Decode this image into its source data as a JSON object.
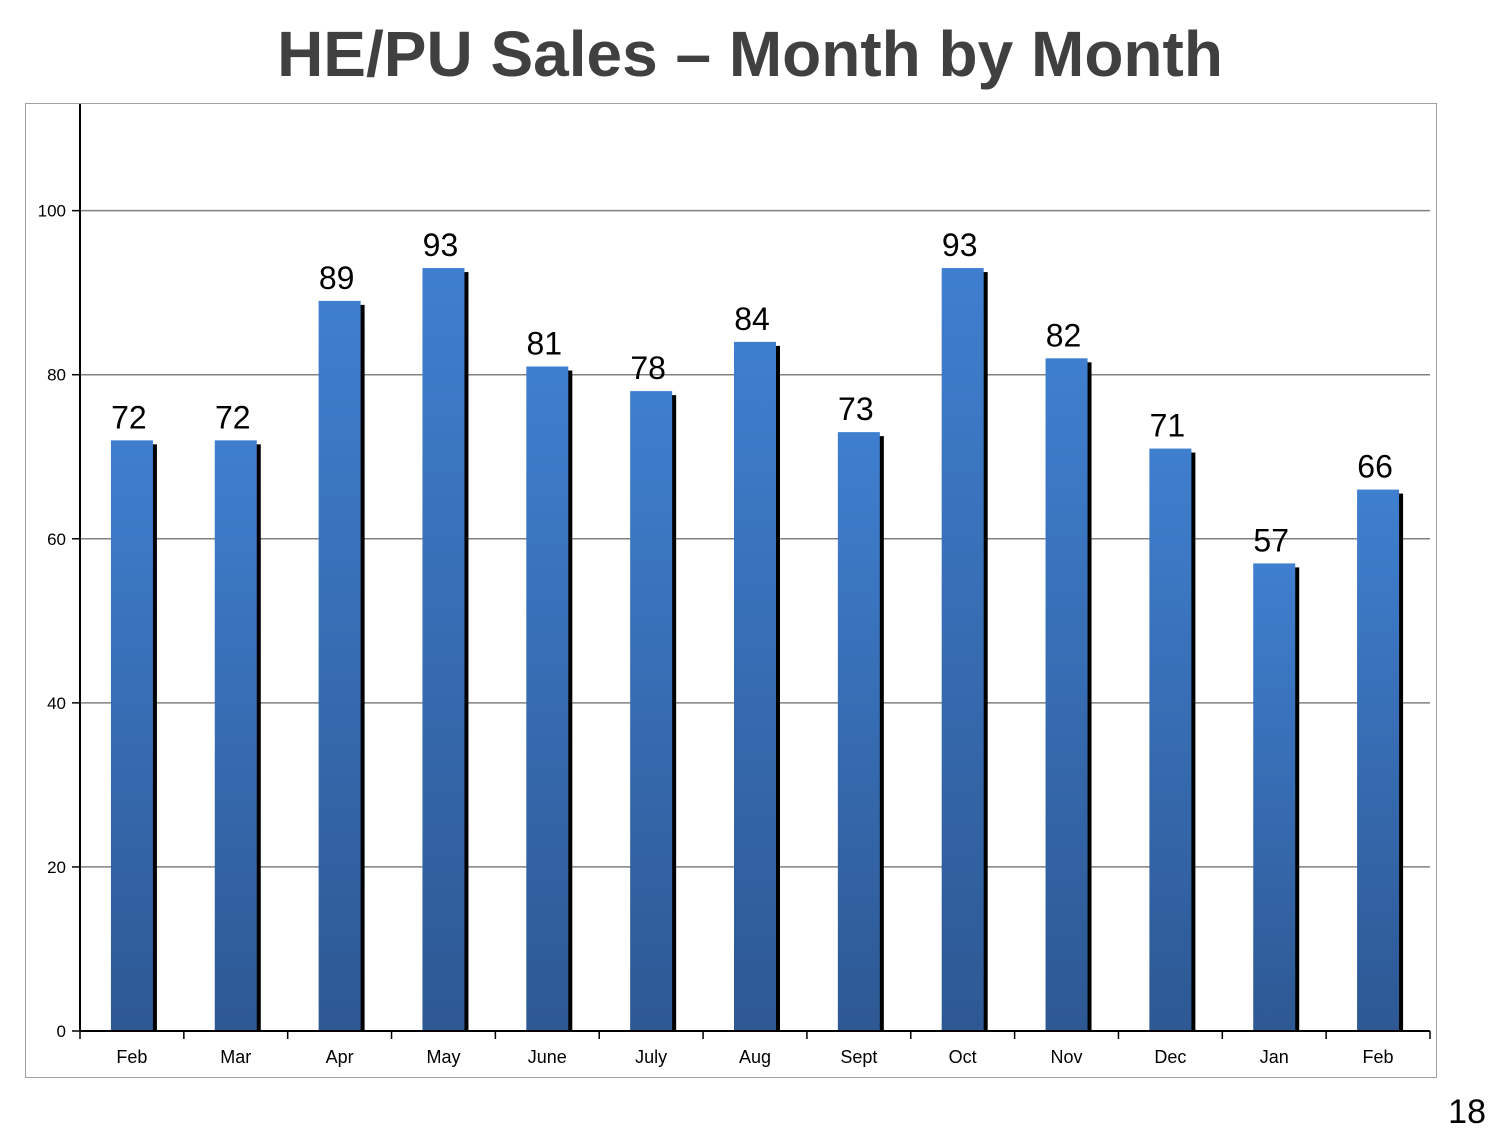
{
  "page": {
    "title": "HE/PU Sales – Month by Month",
    "page_number": "18"
  },
  "colors": {
    "bar_top": "#3f7fcf",
    "bar_bottom": "#2d5893",
    "shadow": "#000000",
    "grid": "#808080",
    "axis": "#000000"
  },
  "chart_data": {
    "type": "bar",
    "title": "HE/PU Sales – Month by Month",
    "categories": [
      "Feb",
      "Mar",
      "Apr",
      "May",
      "June",
      "July",
      "Aug",
      "Sept",
      "Oct",
      "Nov",
      "Dec",
      "Jan",
      "Feb"
    ],
    "values": [
      72,
      72,
      89,
      93,
      81,
      78,
      84,
      73,
      93,
      82,
      71,
      57,
      66
    ],
    "ylim": [
      0,
      113
    ],
    "yticks": [
      0,
      20,
      40,
      60,
      80,
      100
    ],
    "grid": true,
    "data_labels": true,
    "legend": "none"
  }
}
